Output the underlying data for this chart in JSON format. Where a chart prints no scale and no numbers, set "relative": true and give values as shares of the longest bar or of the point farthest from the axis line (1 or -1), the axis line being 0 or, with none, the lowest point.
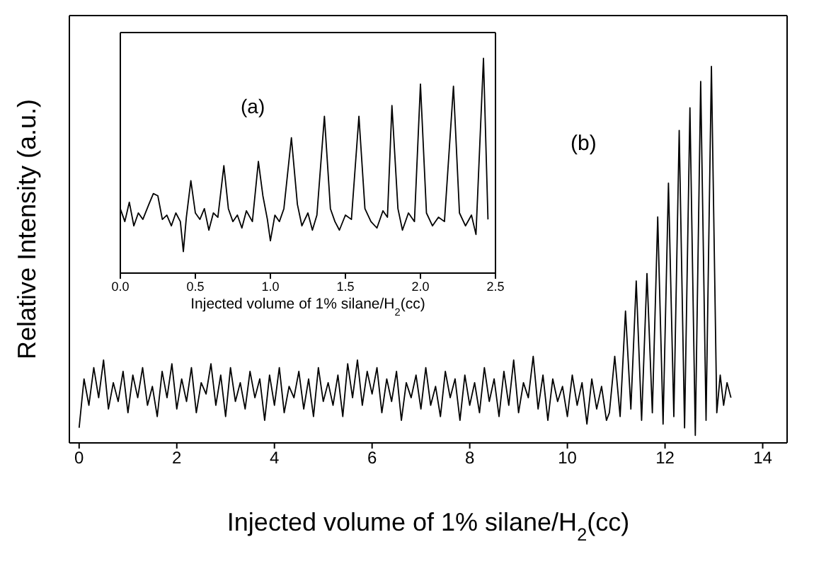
{
  "chart_data": [
    {
      "type": "line",
      "relative": true,
      "xlabel": "Injected volume of 1% silane/H$_{2}$(cc)",
      "ylabel": "Relative Intensity (a.u.)",
      "annotations": [
        "(b)"
      ],
      "xlim": [
        -0.2,
        14.5
      ],
      "xticks": [
        0,
        2,
        4,
        6,
        8,
        10,
        12,
        14
      ],
      "tick_labels": "x",
      "grid": false,
      "legend": false,
      "x": [
        0,
        0.1,
        0.2,
        0.3,
        0.4,
        0.5,
        0.6,
        0.7,
        0.8,
        0.9,
        1,
        1.1,
        1.2,
        1.3,
        1.4,
        1.5,
        1.6,
        1.7,
        1.8,
        1.9,
        2,
        2.1,
        2.2,
        2.3,
        2.4,
        2.5,
        2.6,
        2.7,
        2.8,
        2.9,
        3,
        3.1,
        3.2,
        3.3,
        3.4,
        3.5,
        3.6,
        3.7,
        3.8,
        3.9,
        4,
        4.1,
        4.2,
        4.3,
        4.4,
        4.5,
        4.6,
        4.7,
        4.8,
        4.9,
        5,
        5.1,
        5.2,
        5.3,
        5.4,
        5.5,
        5.6,
        5.7,
        5.8,
        5.9,
        6,
        6.1,
        6.2,
        6.3,
        6.4,
        6.5,
        6.6,
        6.7,
        6.8,
        6.9,
        7,
        7.1,
        7.2,
        7.3,
        7.4,
        7.5,
        7.6,
        7.7,
        7.8,
        7.9,
        8,
        8.1,
        8.2,
        8.3,
        8.4,
        8.5,
        8.6,
        8.7,
        8.8,
        8.9,
        9,
        9.1,
        9.2,
        9.3,
        9.4,
        9.5,
        9.6,
        9.7,
        9.8,
        9.9,
        10,
        10.1,
        10.2,
        10.3,
        10.4,
        10.5,
        10.6,
        10.7,
        10.8,
        10.86,
        10.97,
        11.08,
        11.19,
        11.3,
        11.41,
        11.52,
        11.63,
        11.74,
        11.85,
        11.96,
        12.07,
        12.18,
        12.29,
        12.4,
        12.51,
        12.62,
        12.73,
        12.84,
        12.95,
        13.06,
        13.13,
        13.2,
        13.27,
        13.35
      ],
      "series": [
        {
          "color": "#000000",
          "values": [
            0.04,
            0.17,
            0.1,
            0.2,
            0.12,
            0.22,
            0.09,
            0.16,
            0.11,
            0.19,
            0.08,
            0.18,
            0.12,
            0.2,
            0.1,
            0.15,
            0.07,
            0.19,
            0.12,
            0.21,
            0.09,
            0.17,
            0.11,
            0.2,
            0.08,
            0.16,
            0.13,
            0.21,
            0.1,
            0.18,
            0.07,
            0.2,
            0.11,
            0.16,
            0.09,
            0.19,
            0.12,
            0.17,
            0.06,
            0.18,
            0.1,
            0.2,
            0.08,
            0.15,
            0.12,
            0.19,
            0.09,
            0.17,
            0.07,
            0.2,
            0.11,
            0.16,
            0.1,
            0.18,
            0.07,
            0.21,
            0.12,
            0.22,
            0.1,
            0.19,
            0.13,
            0.2,
            0.08,
            0.17,
            0.11,
            0.19,
            0.06,
            0.16,
            0.12,
            0.18,
            0.09,
            0.2,
            0.1,
            0.15,
            0.07,
            0.19,
            0.12,
            0.17,
            0.06,
            0.18,
            0.1,
            0.16,
            0.08,
            0.2,
            0.11,
            0.17,
            0.07,
            0.19,
            0.1,
            0.22,
            0.08,
            0.16,
            0.12,
            0.23,
            0.09,
            0.18,
            0.06,
            0.17,
            0.11,
            0.15,
            0.07,
            0.18,
            0.1,
            0.16,
            0.05,
            0.17,
            0.09,
            0.15,
            0.06,
            0.08,
            0.23,
            0.07,
            0.35,
            0.09,
            0.43,
            0.06,
            0.45,
            0.08,
            0.6,
            0.05,
            0.69,
            0.07,
            0.83,
            0.04,
            0.89,
            0.02,
            0.96,
            0.06,
            1.0,
            0.08,
            0.18,
            0.1,
            0.16,
            0.12
          ]
        }
      ]
    },
    {
      "type": "line",
      "relative": true,
      "xlabel": "Injected volume of 1% silane/H$_{2}$(cc)",
      "annotations": [
        "(a)"
      ],
      "xlim": [
        0,
        2.5
      ],
      "xticks": [
        {
          "value": 0,
          "label": "0.0"
        },
        {
          "value": 0.5,
          "label": "0.5"
        },
        {
          "value": 1,
          "label": "1.0"
        },
        {
          "value": 1.5,
          "label": "1.5"
        },
        {
          "value": 2,
          "label": "2.0"
        },
        {
          "value": 2.5,
          "label": "2.5"
        }
      ],
      "tick_labels": "x",
      "grid": false,
      "legend": false,
      "x": [
        0,
        0.03,
        0.06,
        0.09,
        0.12,
        0.15,
        0.19,
        0.22,
        0.25,
        0.28,
        0.31,
        0.34,
        0.37,
        0.4,
        0.42,
        0.44,
        0.47,
        0.5,
        0.53,
        0.56,
        0.59,
        0.62,
        0.65,
        0.69,
        0.72,
        0.75,
        0.78,
        0.81,
        0.84,
        0.88,
        0.92,
        0.95,
        0.98,
        1,
        1.03,
        1.06,
        1.09,
        1.14,
        1.18,
        1.21,
        1.25,
        1.28,
        1.31,
        1.36,
        1.4,
        1.43,
        1.46,
        1.5,
        1.54,
        1.59,
        1.63,
        1.67,
        1.71,
        1.75,
        1.78,
        1.81,
        1.85,
        1.88,
        1.92,
        1.96,
        2,
        2.04,
        2.08,
        2.12,
        2.16,
        2.22,
        2.26,
        2.3,
        2.34,
        2.37,
        2.42,
        2.45
      ],
      "series": [
        {
          "color": "#000000",
          "values": [
            0.3,
            0.24,
            0.33,
            0.22,
            0.28,
            0.25,
            0.32,
            0.37,
            0.36,
            0.25,
            0.27,
            0.22,
            0.28,
            0.24,
            0.1,
            0.26,
            0.43,
            0.28,
            0.25,
            0.3,
            0.2,
            0.28,
            0.26,
            0.5,
            0.3,
            0.24,
            0.27,
            0.21,
            0.29,
            0.24,
            0.52,
            0.36,
            0.25,
            0.15,
            0.27,
            0.24,
            0.3,
            0.63,
            0.32,
            0.22,
            0.28,
            0.2,
            0.27,
            0.73,
            0.3,
            0.24,
            0.2,
            0.27,
            0.25,
            0.73,
            0.3,
            0.24,
            0.21,
            0.29,
            0.26,
            0.78,
            0.3,
            0.2,
            0.28,
            0.24,
            0.88,
            0.28,
            0.22,
            0.26,
            0.24,
            0.87,
            0.28,
            0.22,
            0.27,
            0.18,
            1.0,
            0.25
          ]
        }
      ]
    }
  ]
}
